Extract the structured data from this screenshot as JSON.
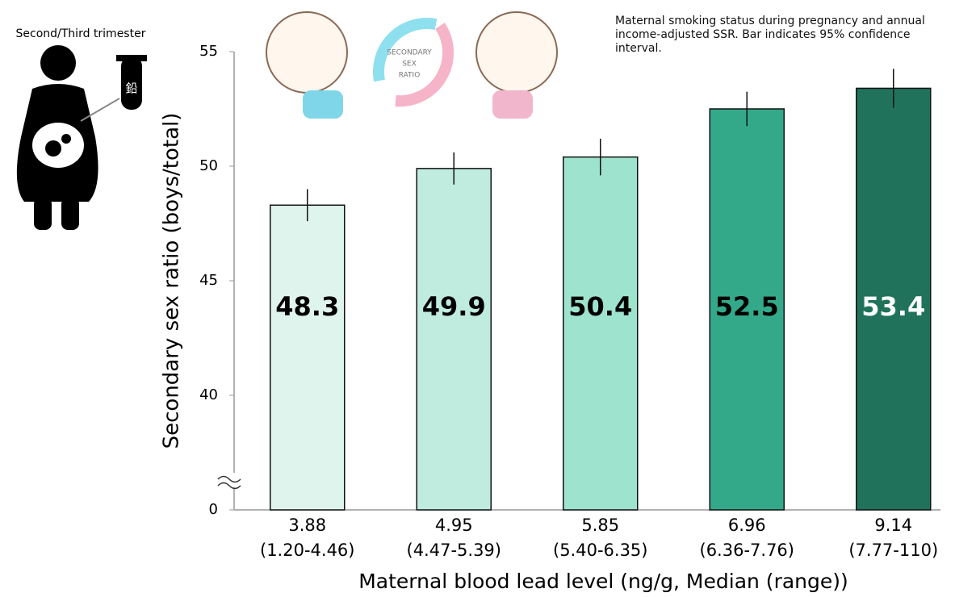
{
  "chart_data": {
    "type": "bar",
    "y_label": "Secondary sex ratio (boys/total)",
    "x_label": "Maternal blood lead level (ng/g, Median (range))",
    "annotation": "Maternal smoking status during pregnancy and annual income-adjusted SSR. Bar indicates 95% confidence interval.",
    "figure_caption": "Second/Third trimester",
    "tube_label": "鉛",
    "illustration_text": [
      "SECONDARY",
      "SEX",
      "RATIO"
    ],
    "categories": [
      "3.88",
      "4.95",
      "5.85",
      "6.96",
      "9.14"
    ],
    "category_ranges": [
      "(1.20-4.46)",
      "(4.47-5.39)",
      "(5.40-6.35)",
      "(6.36-7.76)",
      "(7.77-110)"
    ],
    "values": [
      48.3,
      49.9,
      50.4,
      52.5,
      53.4
    ],
    "errors": [
      0.7,
      0.7,
      0.8,
      0.75,
      0.85
    ],
    "colors": [
      "#e0f4ee",
      "#c0ebdf",
      "#9ee3cd",
      "#33a98a",
      "#20725a"
    ],
    "value_label_colors": [
      "#000000",
      "#000000",
      "#000000",
      "#000000",
      "#ffffff"
    ],
    "ylim": [
      0,
      55
    ],
    "yticks": [
      0,
      40,
      45,
      50,
      55
    ],
    "axis_break": true
  }
}
